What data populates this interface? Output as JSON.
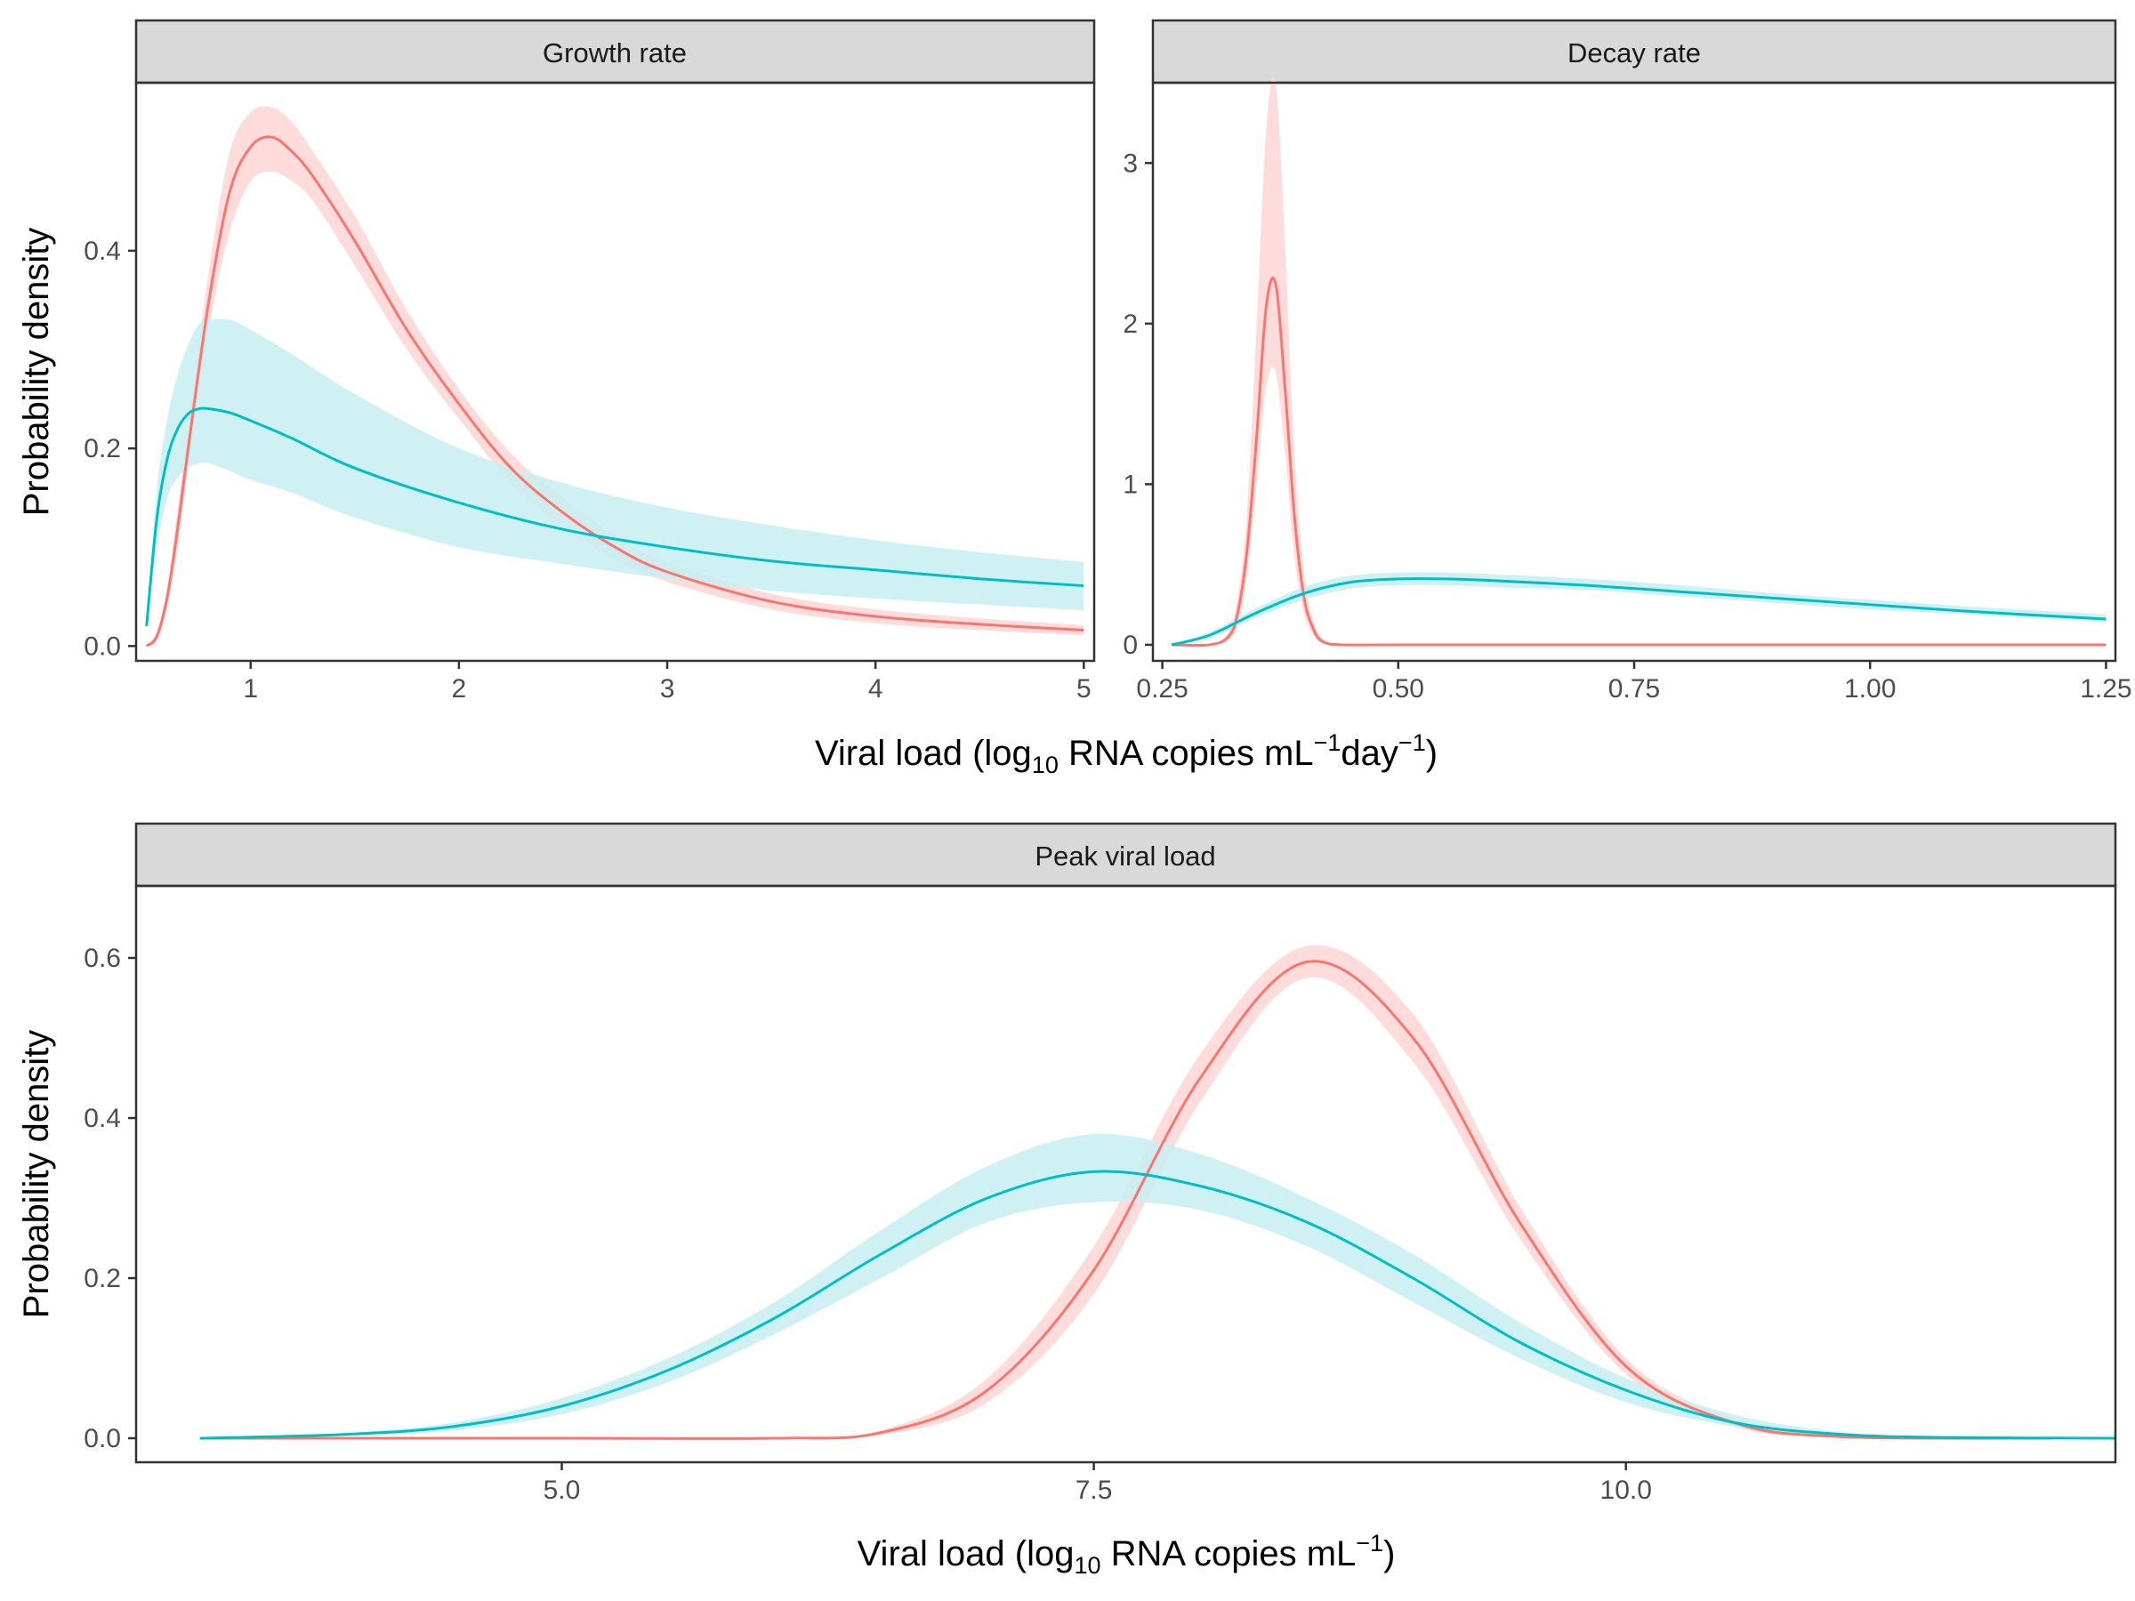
{
  "colors": {
    "red": "#F8766D",
    "red_band": "#FFD6D6",
    "teal": "#00BFC4",
    "teal_band": "#C7EFF1",
    "strip_fill": "#D9D9D9",
    "panel_border": "#333333"
  },
  "labels": {
    "ylabel": "Probability density",
    "xlabel_top": {
      "prefix": "Viral load (log",
      "sub": "10",
      "mid": " RNA copies mL",
      "sup1": "−1",
      "mid2": "day",
      "sup2": "−1",
      "suffix": ")"
    },
    "xlabel_bottom": {
      "prefix": "Viral load (log",
      "sub": "10",
      "mid": " RNA copies mL",
      "sup1": "−1",
      "suffix": ")"
    }
  },
  "chart_data": [
    {
      "type": "area",
      "title": "Growth rate",
      "xlabel": "Viral load (log10 RNA copies mL−1day−1)",
      "ylabel": "Probability density",
      "xlim": [
        0.45,
        5.05
      ],
      "ylim": [
        -0.015,
        0.57
      ],
      "xticks": [
        1,
        2,
        3,
        4,
        5
      ],
      "xtick_labels": [
        "1",
        "2",
        "3",
        "4",
        "5"
      ],
      "yticks": [
        0.0,
        0.2,
        0.4
      ],
      "ytick_labels": [
        "0.0",
        "0.2",
        "0.4"
      ],
      "grid": false,
      "series": [
        {
          "color": "red",
          "x": [
            0.5,
            0.55,
            0.6,
            0.65,
            0.7,
            0.8,
            0.9,
            1.0,
            1.1,
            1.2,
            1.3,
            1.5,
            1.75,
            2.0,
            2.25,
            2.5,
            2.75,
            3.0,
            3.5,
            4.0,
            4.5,
            5.0
          ],
          "y": [
            0.0,
            0.01,
            0.05,
            0.12,
            0.2,
            0.35,
            0.46,
            0.505,
            0.515,
            0.5,
            0.475,
            0.41,
            0.32,
            0.245,
            0.18,
            0.135,
            0.1,
            0.075,
            0.045,
            0.03,
            0.022,
            0.016
          ],
          "lower": [
            0.0,
            0.005,
            0.04,
            0.1,
            0.18,
            0.32,
            0.42,
            0.47,
            0.48,
            0.47,
            0.45,
            0.385,
            0.3,
            0.23,
            0.165,
            0.12,
            0.088,
            0.065,
            0.037,
            0.023,
            0.016,
            0.011
          ],
          "upper": [
            0.0,
            0.015,
            0.06,
            0.14,
            0.22,
            0.38,
            0.5,
            0.54,
            0.545,
            0.53,
            0.5,
            0.435,
            0.34,
            0.26,
            0.195,
            0.15,
            0.112,
            0.085,
            0.053,
            0.037,
            0.028,
            0.021
          ]
        },
        {
          "color": "teal",
          "x": [
            0.5,
            0.55,
            0.6,
            0.65,
            0.7,
            0.75,
            0.8,
            0.9,
            1.0,
            1.2,
            1.5,
            2.0,
            2.5,
            3.0,
            3.5,
            4.0,
            4.5,
            5.0
          ],
          "y": [
            0.02,
            0.13,
            0.19,
            0.22,
            0.235,
            0.24,
            0.24,
            0.236,
            0.228,
            0.21,
            0.18,
            0.145,
            0.118,
            0.1,
            0.086,
            0.077,
            0.068,
            0.061
          ],
          "lower": [
            0.02,
            0.1,
            0.15,
            0.17,
            0.18,
            0.185,
            0.185,
            0.177,
            0.168,
            0.155,
            0.13,
            0.1,
            0.083,
            0.068,
            0.056,
            0.048,
            0.042,
            0.036
          ],
          "upper": [
            0.02,
            0.16,
            0.23,
            0.275,
            0.305,
            0.325,
            0.33,
            0.33,
            0.32,
            0.295,
            0.255,
            0.2,
            0.165,
            0.14,
            0.122,
            0.107,
            0.095,
            0.085
          ]
        }
      ]
    },
    {
      "type": "area",
      "title": "Decay rate",
      "xlabel": "Viral load (log10 RNA copies mL−1day−1)",
      "ylabel": "",
      "xlim": [
        0.24,
        1.26
      ],
      "ylim": [
        -0.1,
        3.5
      ],
      "xticks": [
        0.25,
        0.5,
        0.75,
        1.0,
        1.25
      ],
      "xtick_labels": [
        "0.25",
        "0.50",
        "0.75",
        "1.00",
        "1.25"
      ],
      "yticks": [
        0,
        1,
        2,
        3
      ],
      "ytick_labels": [
        "0",
        "1",
        "2",
        "3"
      ],
      "grid": false,
      "series": [
        {
          "color": "red",
          "x": [
            0.26,
            0.3,
            0.32,
            0.33,
            0.34,
            0.35,
            0.36,
            0.37,
            0.38,
            0.39,
            0.4,
            0.41,
            0.42,
            0.44,
            0.5,
            0.75,
            1.0,
            1.25
          ],
          "y": [
            0.0,
            0.0,
            0.05,
            0.2,
            0.6,
            1.3,
            2.1,
            2.25,
            1.6,
            0.8,
            0.3,
            0.1,
            0.02,
            0.0,
            0.0,
            0.0,
            0.0,
            0.0
          ],
          "lower": [
            0.0,
            0.0,
            0.03,
            0.12,
            0.45,
            1.0,
            1.6,
            1.7,
            1.2,
            0.55,
            0.2,
            0.06,
            0.01,
            0.0,
            0.0,
            0.0,
            0.0,
            0.0
          ],
          "upper": [
            0.0,
            0.0,
            0.08,
            0.3,
            0.85,
            2.0,
            3.2,
            3.5,
            2.5,
            1.2,
            0.45,
            0.15,
            0.04,
            0.0,
            0.0,
            0.0,
            0.0,
            0.0
          ]
        },
        {
          "color": "teal",
          "x": [
            0.26,
            0.3,
            0.35,
            0.4,
            0.45,
            0.5,
            0.55,
            0.6,
            0.7,
            0.8,
            0.9,
            1.0,
            1.1,
            1.25
          ],
          "y": [
            0.0,
            0.06,
            0.2,
            0.32,
            0.39,
            0.41,
            0.41,
            0.4,
            0.37,
            0.33,
            0.29,
            0.25,
            0.21,
            0.16
          ],
          "lower": [
            0.0,
            0.04,
            0.17,
            0.28,
            0.35,
            0.37,
            0.37,
            0.36,
            0.34,
            0.3,
            0.26,
            0.22,
            0.19,
            0.14
          ],
          "upper": [
            0.0,
            0.08,
            0.23,
            0.36,
            0.43,
            0.45,
            0.45,
            0.44,
            0.41,
            0.37,
            0.32,
            0.28,
            0.24,
            0.19
          ]
        }
      ]
    },
    {
      "type": "area",
      "title": "Peak viral load",
      "xlabel": "Viral load (log10 RNA copies mL−1)",
      "ylabel": "Probability density",
      "xlim": [
        3.0,
        12.3
      ],
      "ylim": [
        -0.03,
        0.69
      ],
      "xticks": [
        5.0,
        7.5,
        10.0
      ],
      "xtick_labels": [
        "5.0",
        "7.5",
        "10.0"
      ],
      "yticks": [
        0.0,
        0.2,
        0.4,
        0.6
      ],
      "ytick_labels": [
        "0.0",
        "0.2",
        "0.4",
        "0.6"
      ],
      "grid": false,
      "series": [
        {
          "color": "red",
          "x": [
            3.3,
            5.0,
            6.0,
            6.5,
            7.0,
            7.5,
            8.0,
            8.5,
            9.0,
            9.5,
            10.0,
            10.5,
            11.0,
            12.0
          ],
          "y": [
            0.0,
            0.0,
            0.0,
            0.007,
            0.06,
            0.21,
            0.45,
            0.595,
            0.5,
            0.27,
            0.09,
            0.02,
            0.002,
            0.0
          ],
          "lower": [
            0.0,
            0.0,
            0.0,
            0.004,
            0.045,
            0.18,
            0.42,
            0.575,
            0.47,
            0.25,
            0.08,
            0.015,
            0.001,
            0.0
          ],
          "upper": [
            0.0,
            0.0,
            0.0,
            0.01,
            0.075,
            0.24,
            0.48,
            0.615,
            0.53,
            0.29,
            0.1,
            0.025,
            0.003,
            0.0
          ],
          "upper_note": ""
        },
        {
          "color": "teal",
          "x": [
            3.3,
            4.0,
            4.5,
            5.0,
            5.5,
            6.0,
            6.5,
            7.0,
            7.5,
            8.0,
            8.5,
            9.0,
            9.5,
            10.0,
            10.5,
            11.0,
            11.5,
            12.3
          ],
          "y": [
            0.0,
            0.005,
            0.015,
            0.04,
            0.085,
            0.15,
            0.23,
            0.3,
            0.333,
            0.315,
            0.27,
            0.2,
            0.12,
            0.06,
            0.02,
            0.005,
            0.001,
            0.0
          ],
          "lower": [
            0.0,
            0.003,
            0.01,
            0.03,
            0.07,
            0.13,
            0.2,
            0.27,
            0.295,
            0.285,
            0.24,
            0.17,
            0.1,
            0.045,
            0.015,
            0.003,
            0.001,
            0.0
          ],
          "upper": [
            0.0,
            0.007,
            0.02,
            0.05,
            0.1,
            0.17,
            0.26,
            0.34,
            0.38,
            0.355,
            0.3,
            0.23,
            0.145,
            0.075,
            0.03,
            0.008,
            0.002,
            0.0
          ]
        }
      ]
    }
  ]
}
